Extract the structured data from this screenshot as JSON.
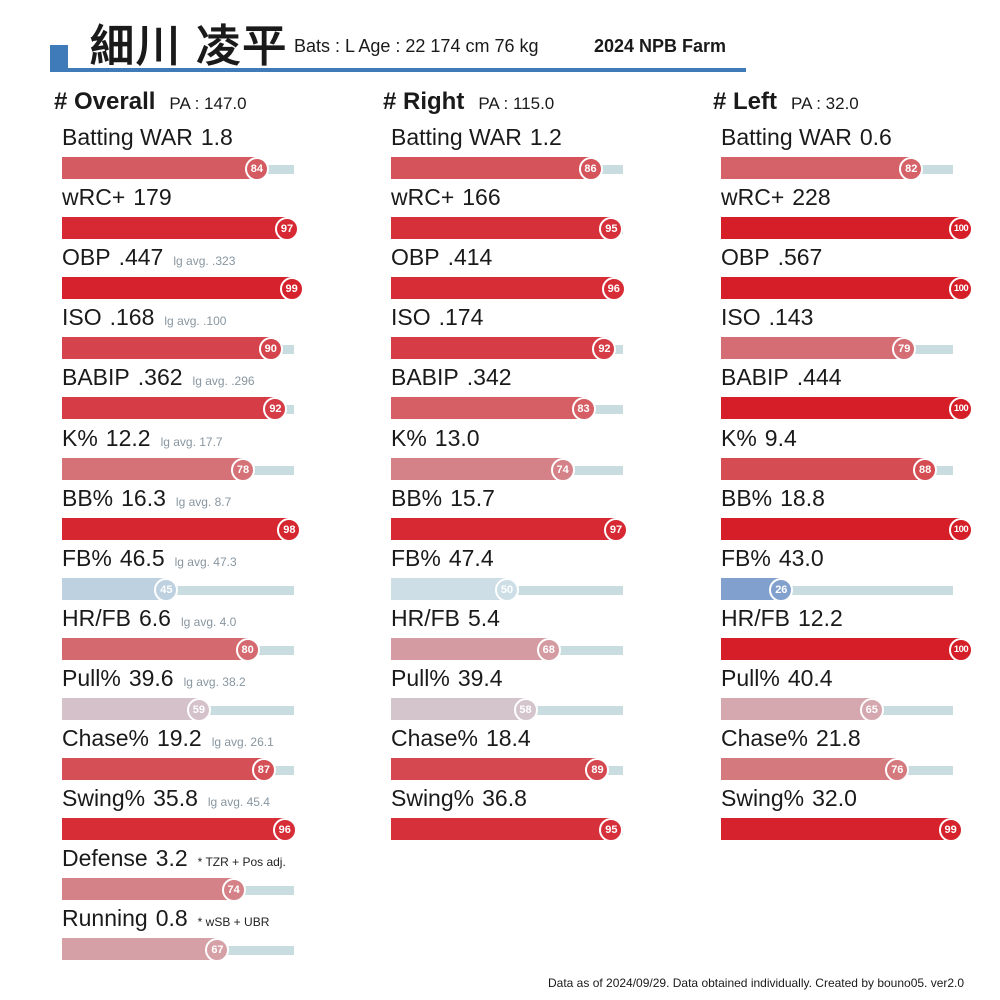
{
  "header": {
    "player_name": "細川 凌平",
    "profile": "Bats : L  Age : 22  174 cm 76 kg",
    "league": "2024 NPB Farm"
  },
  "footer": {
    "text": "Data as of 2024/09/29. Data obtained individually. Created by bouno05.  ver2.0"
  },
  "chart_data": [
    {
      "type": "bar",
      "title": "# Overall",
      "pa_label": "PA : 147.0",
      "x_range": [
        0,
        100
      ],
      "metrics": [
        {
          "label": "Batting WAR",
          "value": "1.8",
          "note": "",
          "percentile": 84
        },
        {
          "label": "wRC+",
          "value": "179",
          "note": "",
          "percentile": 97
        },
        {
          "label": "OBP",
          "value": ".447",
          "note": "lg avg. .323",
          "percentile": 99
        },
        {
          "label": "ISO",
          "value": ".168",
          "note": "lg avg. .100",
          "percentile": 90
        },
        {
          "label": "BABIP",
          "value": ".362",
          "note": "lg avg. .296",
          "percentile": 92
        },
        {
          "label": "K%",
          "value": "12.2",
          "note": "lg avg. 17.7",
          "percentile": 78
        },
        {
          "label": "BB%",
          "value": "16.3",
          "note": "lg avg. 8.7",
          "percentile": 98
        },
        {
          "label": "FB%",
          "value": "46.5",
          "note": "lg avg. 47.3",
          "percentile": 45
        },
        {
          "label": "HR/FB",
          "value": "6.6",
          "note": "lg avg. 4.0",
          "percentile": 80
        },
        {
          "label": "Pull%",
          "value": "39.6",
          "note": "lg avg. 38.2",
          "percentile": 59
        },
        {
          "label": "Chase%",
          "value": "19.2",
          "note": "lg avg. 26.1",
          "percentile": 87
        },
        {
          "label": "Swing%",
          "value": "35.8",
          "note": "lg avg. 45.4",
          "percentile": 96
        },
        {
          "label": "Defense",
          "value": "3.2",
          "note": "* TZR + Pos adj.",
          "percentile": 74
        },
        {
          "label": "Running",
          "value": "0.8",
          "note": "* wSB + UBR",
          "percentile": 67
        }
      ]
    },
    {
      "type": "bar",
      "title": "# Right",
      "pa_label": "PA : 115.0",
      "x_range": [
        0,
        100
      ],
      "metrics": [
        {
          "label": "Batting WAR",
          "value": "1.2",
          "note": "",
          "percentile": 86
        },
        {
          "label": "wRC+",
          "value": "166",
          "note": "",
          "percentile": 95
        },
        {
          "label": "OBP",
          "value": ".414",
          "note": "",
          "percentile": 96
        },
        {
          "label": "ISO",
          "value": ".174",
          "note": "",
          "percentile": 92
        },
        {
          "label": "BABIP",
          "value": ".342",
          "note": "",
          "percentile": 83
        },
        {
          "label": "K%",
          "value": "13.0",
          "note": "",
          "percentile": 74
        },
        {
          "label": "BB%",
          "value": "15.7",
          "note": "",
          "percentile": 97
        },
        {
          "label": "FB%",
          "value": "47.4",
          "note": "",
          "percentile": 50
        },
        {
          "label": "HR/FB",
          "value": "5.4",
          "note": "",
          "percentile": 68
        },
        {
          "label": "Pull%",
          "value": "39.4",
          "note": "",
          "percentile": 58
        },
        {
          "label": "Chase%",
          "value": "18.4",
          "note": "",
          "percentile": 89
        },
        {
          "label": "Swing%",
          "value": "36.8",
          "note": "",
          "percentile": 95
        }
      ]
    },
    {
      "type": "bar",
      "title": "# Left",
      "pa_label": "PA : 32.0",
      "x_range": [
        0,
        100
      ],
      "metrics": [
        {
          "label": "Batting WAR",
          "value": "0.6",
          "note": "",
          "percentile": 82
        },
        {
          "label": "wRC+",
          "value": "228",
          "note": "",
          "percentile": 100
        },
        {
          "label": "OBP",
          "value": ".567",
          "note": "",
          "percentile": 100
        },
        {
          "label": "ISO",
          "value": ".143",
          "note": "",
          "percentile": 79
        },
        {
          "label": "BABIP",
          "value": ".444",
          "note": "",
          "percentile": 100
        },
        {
          "label": "K%",
          "value": "9.4",
          "note": "",
          "percentile": 88
        },
        {
          "label": "BB%",
          "value": "18.8",
          "note": "",
          "percentile": 100
        },
        {
          "label": "FB%",
          "value": "43.0",
          "note": "",
          "percentile": 26
        },
        {
          "label": "HR/FB",
          "value": "12.2",
          "note": "",
          "percentile": 100
        },
        {
          "label": "Pull%",
          "value": "40.4",
          "note": "",
          "percentile": 65
        },
        {
          "label": "Chase%",
          "value": "21.8",
          "note": "",
          "percentile": 76
        },
        {
          "label": "Swing%",
          "value": "32.0",
          "note": "",
          "percentile": 99
        }
      ]
    }
  ]
}
